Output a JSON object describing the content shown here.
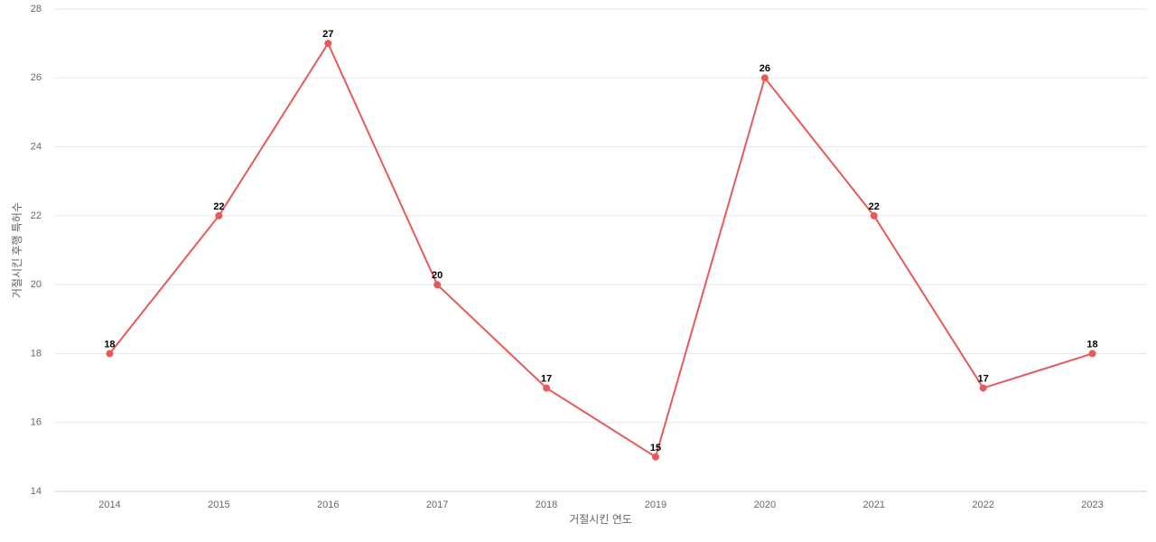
{
  "chart_data": {
    "type": "line",
    "x_label": "거절시킨 연도",
    "y_label": "거절시킨 후행 특허수",
    "categories": [
      "2014",
      "2015",
      "2016",
      "2017",
      "2018",
      "2019",
      "2020",
      "2021",
      "2022",
      "2023"
    ],
    "series": [
      {
        "name": "후행 특허수",
        "color": "#e85a5a",
        "values": [
          18,
          22,
          27,
          20,
          17,
          15,
          26,
          22,
          17,
          18
        ]
      }
    ],
    "ylim": [
      14,
      28
    ],
    "yticks": [
      14,
      16,
      18,
      20,
      22,
      24,
      26,
      28
    ],
    "grid": true
  }
}
